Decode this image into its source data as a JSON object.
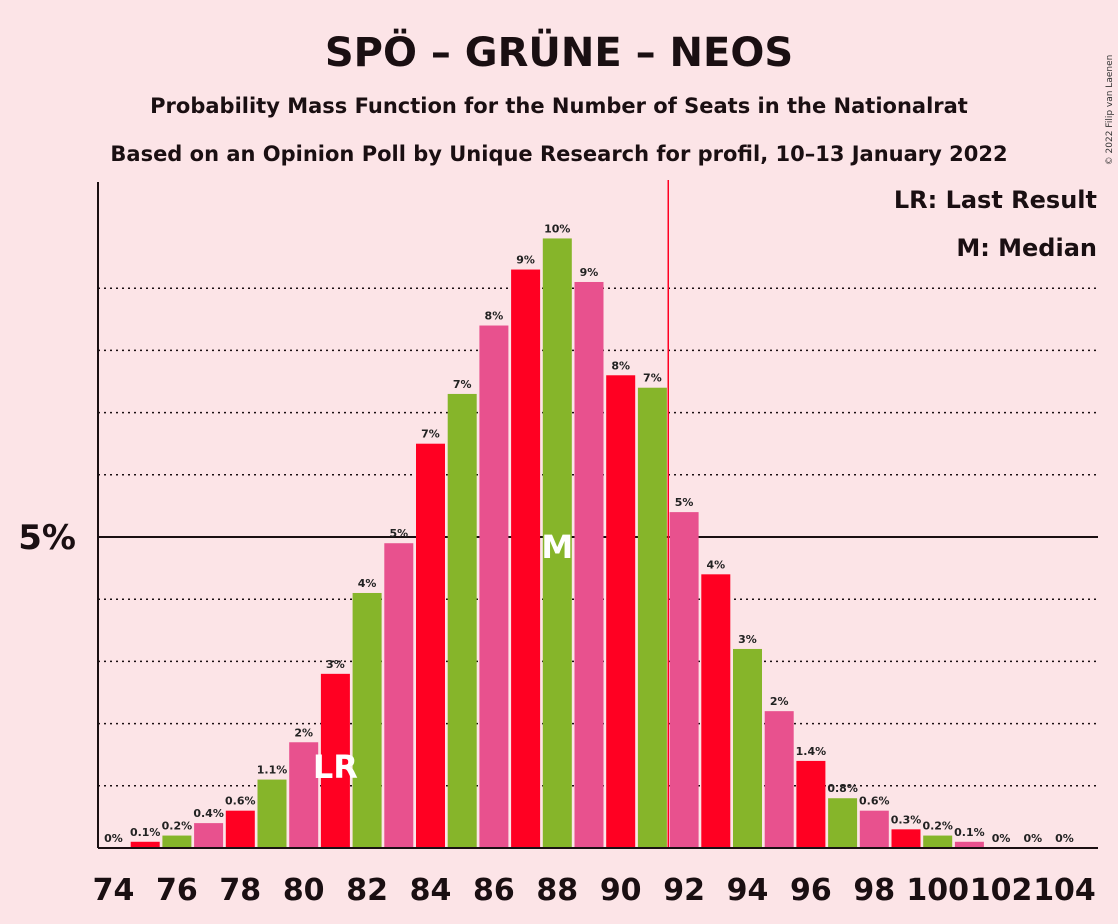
{
  "title": "SPÖ – GRÜNE – NEOS",
  "subtitle1": "Probability Mass Function for the Number of Seats in the Nationalrat",
  "subtitle2": "Based on an Opinion Poll by Unique Research for profil, 10–13 January 2022",
  "copyright": "© 2022 Filip van Laenen",
  "legend": {
    "lr": "LR: Last Result",
    "m": "M: Median"
  },
  "markers": {
    "lr_text": "LR",
    "m_text": "M",
    "lr_seat": 81,
    "median_seat": 88,
    "majority_line_seat": 91.5
  },
  "colors": {
    "red": "#ff0022",
    "green": "#86b52a",
    "pink": "#e8518e",
    "background": "#fce4e7",
    "axis": "#1a0f12"
  },
  "chart_data": {
    "type": "bar",
    "x": [
      74,
      75,
      76,
      77,
      78,
      79,
      80,
      81,
      82,
      83,
      84,
      85,
      86,
      87,
      88,
      89,
      90,
      91,
      92,
      93,
      94,
      95,
      96,
      97,
      98,
      99,
      100,
      101,
      102,
      103,
      104
    ],
    "values": [
      0,
      0.1,
      0.2,
      0.4,
      0.6,
      1.1,
      1.7,
      2.8,
      4.1,
      4.9,
      6.5,
      7.3,
      8.4,
      9.3,
      9.8,
      9.1,
      7.6,
      7.4,
      5.4,
      4.4,
      3.2,
      2.2,
      1.4,
      0.8,
      0.6,
      0.3,
      0.2,
      0.1,
      0,
      0,
      0
    ],
    "labels": [
      "0%",
      "0.1%",
      "0.2%",
      "0.4%",
      "0.6%",
      "1.1%",
      "2%",
      "3%",
      "4%",
      "5%",
      "7%",
      "7%",
      "8%",
      "9%",
      "10%",
      "9%",
      "8%",
      "7%",
      "5%",
      "4%",
      "3%",
      "2%",
      "1.4%",
      "0.8%",
      "0.6%",
      "0.3%",
      "0.2%",
      "0.1%",
      "0%",
      "0%",
      "0%"
    ],
    "colors": [
      "pink",
      "red",
      "green",
      "pink",
      "red",
      "green",
      "pink",
      "red",
      "green",
      "pink",
      "red",
      "green",
      "pink",
      "red",
      "green",
      "pink",
      "red",
      "green",
      "pink",
      "red",
      "green",
      "pink",
      "red",
      "green",
      "pink",
      "red",
      "green",
      "pink",
      "red",
      "green",
      "pink"
    ],
    "xticks": [
      "74",
      "76",
      "78",
      "80",
      "82",
      "84",
      "86",
      "88",
      "90",
      "92",
      "94",
      "96",
      "98",
      "100",
      "102",
      "104"
    ],
    "ytick_label": "5%",
    "ytick_value": 5,
    "ylim": [
      0,
      10.7
    ],
    "grid": "dotted, every 1%"
  }
}
